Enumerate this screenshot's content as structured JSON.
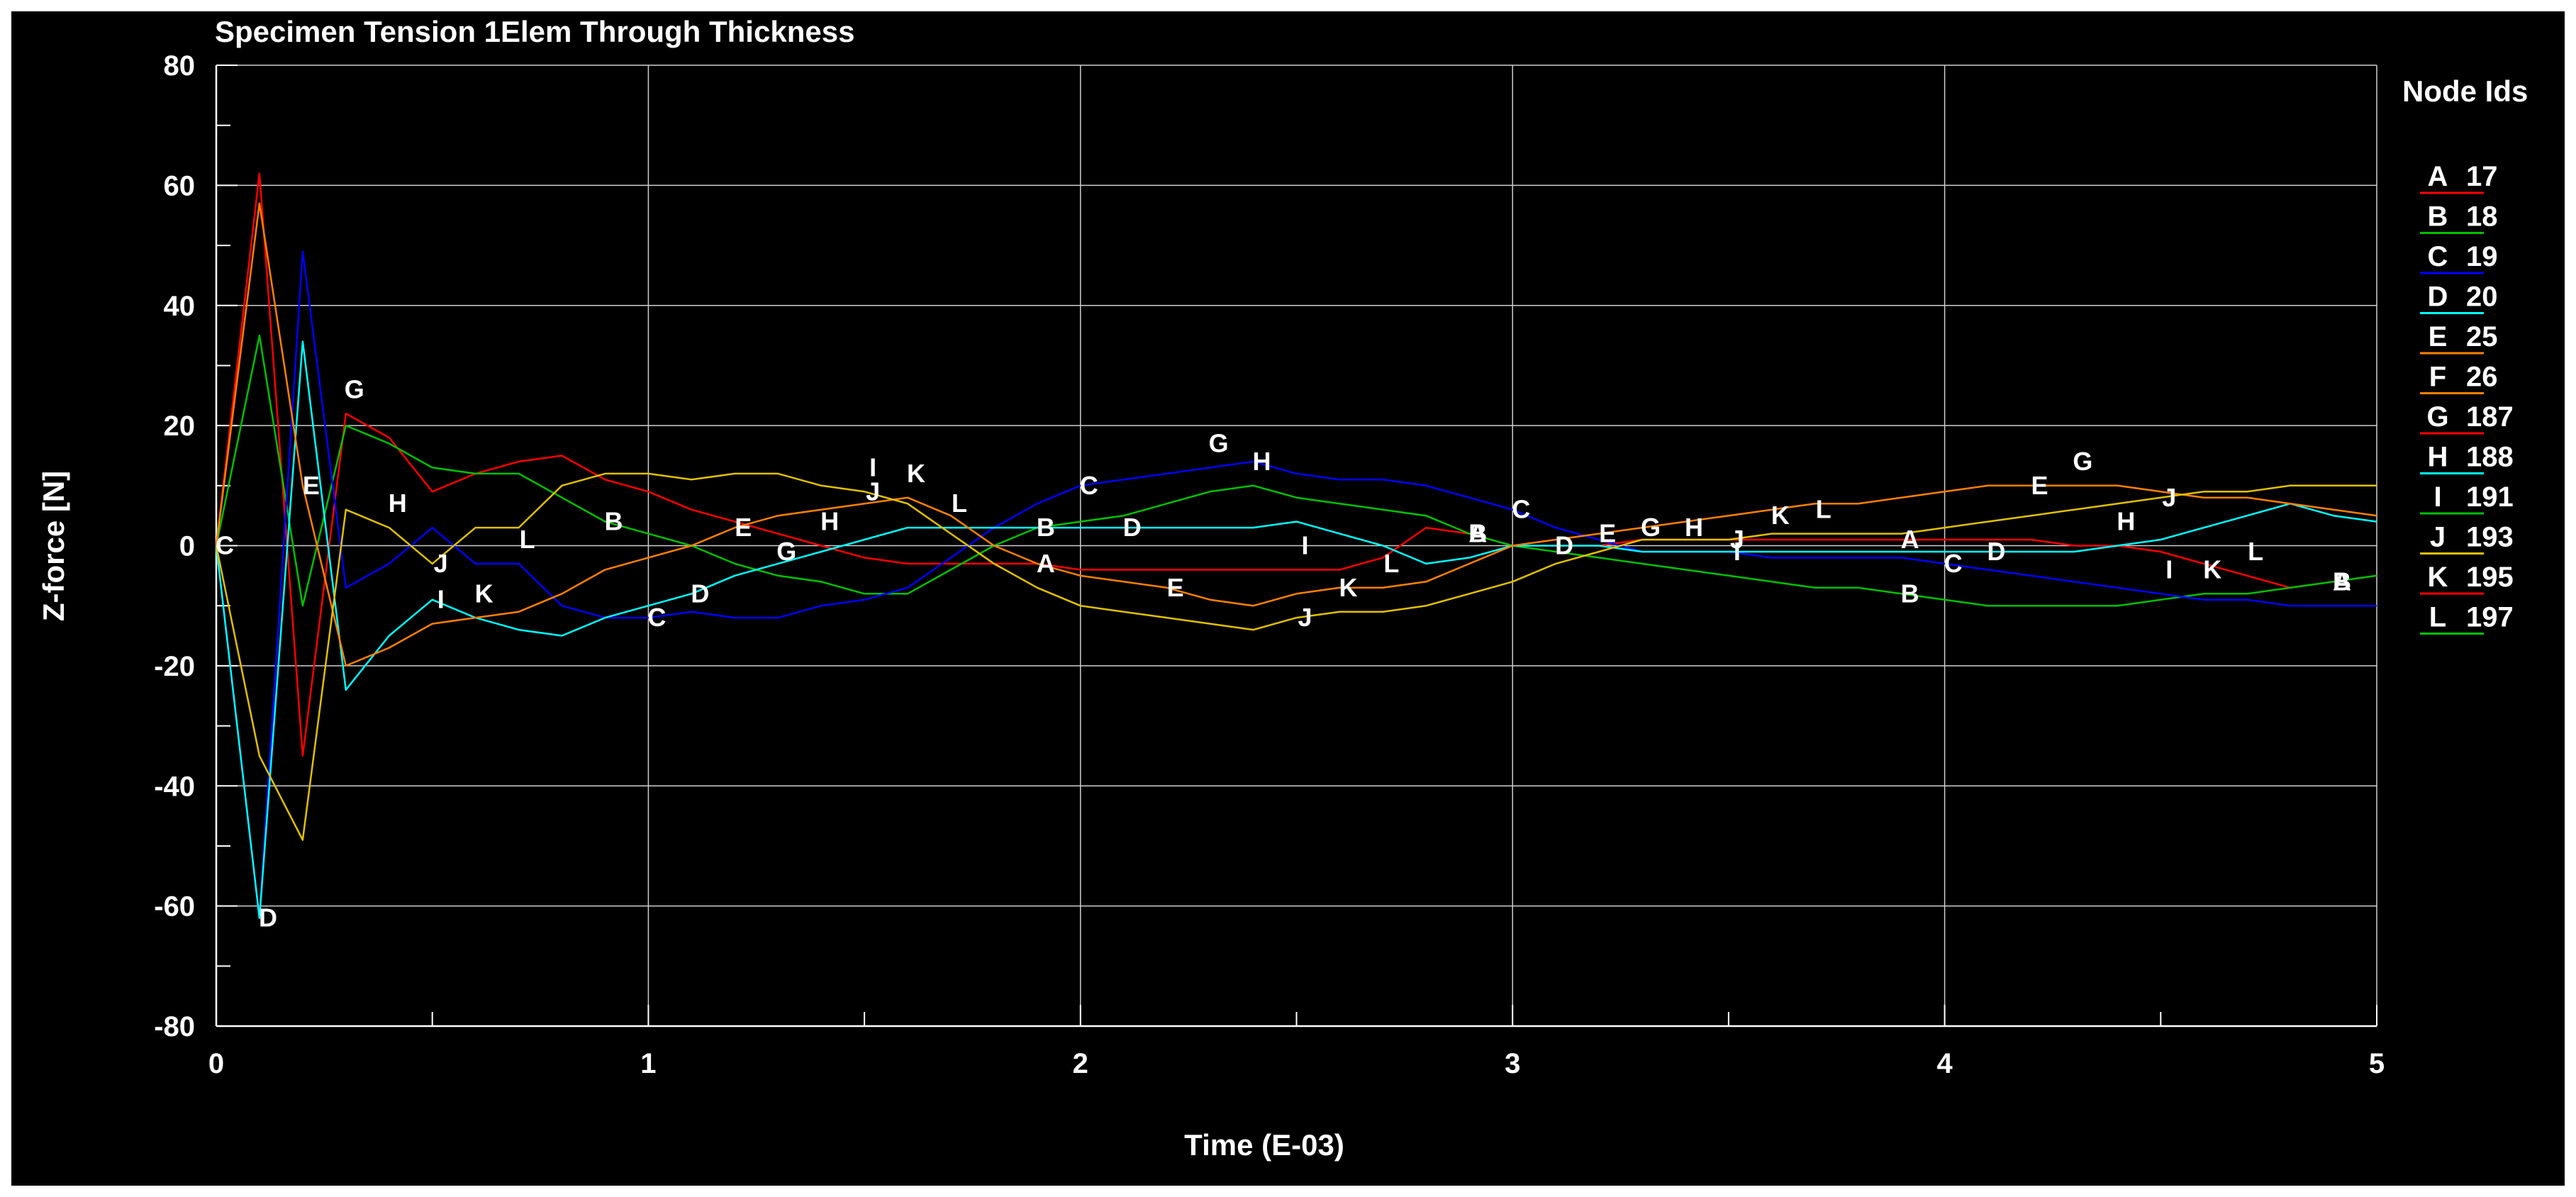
{
  "chart_data": {
    "type": "line",
    "title": "Specimen Tension 1Elem Through Thickness",
    "xlabel": "Time (E-03)",
    "ylabel": "Z-force [N]",
    "xlim": [
      0,
      5
    ],
    "ylim": [
      -80,
      80
    ],
    "x_ticks": [
      "0",
      "1",
      "2",
      "3",
      "4",
      "5"
    ],
    "y_ticks": [
      "-80",
      "-60",
      "-40",
      "-20",
      "0",
      "20",
      "40",
      "60",
      "80"
    ],
    "grid": true,
    "legend_title": "Node Ids",
    "legend_position": "right",
    "background": "#000000",
    "x": [
      0,
      0.1,
      0.2,
      0.3,
      0.4,
      0.5,
      0.6,
      0.7,
      0.8,
      0.9,
      1.0,
      1.1,
      1.2,
      1.3,
      1.4,
      1.5,
      1.6,
      1.7,
      1.8,
      1.9,
      2.0,
      2.1,
      2.2,
      2.3,
      2.4,
      2.5,
      2.6,
      2.7,
      2.8,
      2.9,
      3.0,
      3.1,
      3.2,
      3.3,
      3.4,
      3.5,
      3.6,
      3.7,
      3.8,
      3.9,
      4.0,
      4.1,
      4.2,
      4.3,
      4.4,
      4.5,
      4.6,
      4.7,
      4.8,
      4.9,
      5.0
    ],
    "series": [
      {
        "letter": "A",
        "name": "17",
        "color": "#ff0000",
        "values": [
          0,
          62,
          -35,
          22,
          18,
          9,
          12,
          14,
          15,
          11,
          9,
          6,
          4,
          2,
          0,
          -2,
          -3,
          -3,
          -3,
          -3,
          -4,
          -4,
          -4,
          -4,
          -4,
          -4,
          -4,
          -2,
          3,
          2,
          0,
          0,
          0,
          1,
          1,
          1,
          1,
          1,
          1,
          1,
          1,
          1,
          1,
          0,
          0,
          -1,
          -3,
          -5,
          -7,
          -6,
          -5
        ],
        "label_x": [
          1.9,
          2.9,
          3.9,
          4.9
        ]
      },
      {
        "letter": "B",
        "name": "18",
        "color": "#00c000",
        "values": [
          0,
          35,
          -10,
          20,
          17,
          13,
          12,
          12,
          8,
          4,
          2,
          0,
          -3,
          -5,
          -6,
          -8,
          -8,
          -4,
          0,
          3,
          4,
          5,
          7,
          9,
          10,
          8,
          7,
          6,
          5,
          2,
          0,
          -1,
          -2,
          -3,
          -4,
          -5,
          -6,
          -7,
          -7,
          -8,
          -9,
          -10,
          -10,
          -10,
          -10,
          -9,
          -8,
          -8,
          -7,
          -6,
          -5
        ],
        "label_x": [
          0.9,
          1.9,
          2.9,
          3.9,
          4.9
        ]
      },
      {
        "letter": "C",
        "name": "19",
        "color": "#0000ff",
        "values": [
          0,
          -62,
          49,
          -7,
          -3,
          3,
          -3,
          -3,
          -10,
          -12,
          -12,
          -11,
          -12,
          -12,
          -10,
          -9,
          -7,
          -2,
          3,
          7,
          10,
          11,
          12,
          13,
          14,
          12,
          11,
          11,
          10,
          8,
          6,
          3,
          1,
          -1,
          -1,
          -1,
          -2,
          -2,
          -2,
          -2,
          -3,
          -4,
          -5,
          -6,
          -7,
          -8,
          -9,
          -9,
          -10,
          -10,
          -10
        ],
        "label_x": [
          0,
          1.0,
          2.0,
          3.0,
          4.0
        ]
      },
      {
        "letter": "D",
        "name": "20",
        "color": "#00ffff",
        "values": [
          0,
          -62,
          34,
          -24,
          -15,
          -9,
          -12,
          -14,
          -15,
          -12,
          -10,
          -8,
          -5,
          -3,
          -1,
          1,
          3,
          3,
          3,
          3,
          3,
          3,
          3,
          3,
          3,
          4,
          2,
          0,
          -3,
          -2,
          0,
          0,
          0,
          -1,
          -1,
          -1,
          -1,
          -1,
          -1,
          -1,
          -1,
          -1,
          -1,
          -1,
          0,
          1,
          3,
          5,
          7,
          5,
          4
        ],
        "label_x": [
          0.1,
          1.1,
          2.1,
          3.1,
          4.1
        ]
      },
      {
        "letter": "E",
        "name": "25",
        "color": "#ff8000",
        "values": [
          0,
          57,
          10,
          -20,
          -17,
          -13,
          -12,
          -11,
          -8,
          -4,
          -2,
          0,
          3,
          5,
          6,
          7,
          8,
          5,
          0,
          -3,
          -5,
          -6,
          -7,
          -9,
          -10,
          -8,
          -7,
          -7,
          -6,
          -3,
          0,
          1,
          2,
          3,
          4,
          5,
          6,
          7,
          7,
          8,
          9,
          10,
          10,
          10,
          10,
          9,
          8,
          8,
          7,
          6,
          5
        ],
        "label_x": [
          0.2,
          1.2,
          2.2,
          3.2,
          4.2
        ]
      },
      {
        "letter": "J",
        "name": "193",
        "color": "#e0c000",
        "values": [
          0,
          -35,
          -49,
          6,
          3,
          -3,
          3,
          3,
          10,
          12,
          12,
          11,
          12,
          12,
          10,
          9,
          7,
          2,
          -3,
          -7,
          -10,
          -11,
          -12,
          -13,
          -14,
          -12,
          -11,
          -11,
          -10,
          -8,
          -6,
          -3,
          -1,
          1,
          1,
          1,
          2,
          2,
          2,
          2,
          3,
          4,
          5,
          6,
          7,
          8,
          9,
          9,
          10,
          10,
          10
        ],
        "label_x": [
          0.5,
          1.5,
          2.5,
          3.5,
          4.5
        ]
      }
    ],
    "legend_extra": [
      {
        "letter": "F",
        "name": "26",
        "color": "#ff8000"
      },
      {
        "letter": "G",
        "name": "187",
        "color": "#ff0000"
      },
      {
        "letter": "H",
        "name": "188",
        "color": "#00ffff"
      },
      {
        "letter": "I",
        "name": "191",
        "color": "#00c000"
      },
      {
        "letter": "K",
        "name": "195",
        "color": "#ff0000"
      },
      {
        "letter": "L",
        "name": "197",
        "color": "#00c000"
      }
    ],
    "extra_labels": [
      {
        "text": "G",
        "x": 0.3
      },
      {
        "text": "G",
        "x": 1.3
      },
      {
        "text": "G",
        "x": 2.3
      },
      {
        "text": "G",
        "x": 3.3
      },
      {
        "text": "G",
        "x": 4.3
      },
      {
        "text": "H",
        "x": 0.4
      },
      {
        "text": "H",
        "x": 1.4
      },
      {
        "text": "H",
        "x": 2.4
      },
      {
        "text": "H",
        "x": 3.4
      },
      {
        "text": "H",
        "x": 4.4
      },
      {
        "text": "I",
        "x": 0.5
      },
      {
        "text": "I",
        "x": 1.5
      },
      {
        "text": "I",
        "x": 2.5
      },
      {
        "text": "I",
        "x": 3.5
      },
      {
        "text": "I",
        "x": 4.5
      },
      {
        "text": "K",
        "x": 0.6
      },
      {
        "text": "K",
        "x": 1.6
      },
      {
        "text": "K",
        "x": 2.6
      },
      {
        "text": "K",
        "x": 3.6
      },
      {
        "text": "K",
        "x": 4.6
      },
      {
        "text": "L",
        "x": 0.7
      },
      {
        "text": "L",
        "x": 1.7
      },
      {
        "text": "L",
        "x": 2.7
      },
      {
        "text": "L",
        "x": 3.7
      },
      {
        "text": "L",
        "x": 4.7
      }
    ]
  }
}
